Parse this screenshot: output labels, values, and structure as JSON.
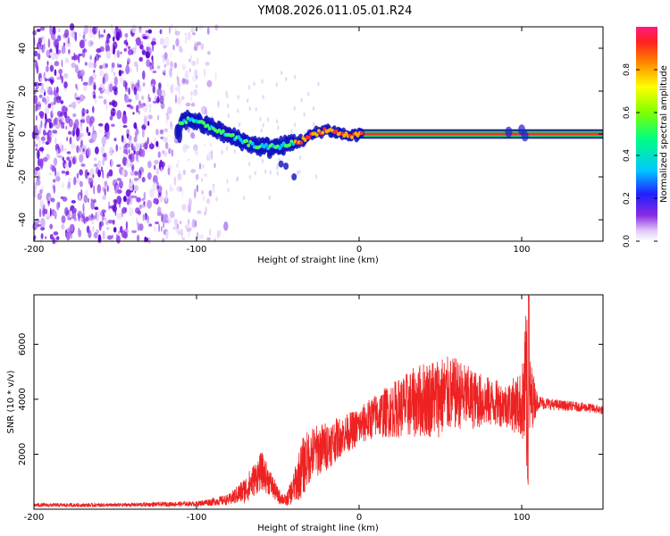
{
  "title": "YM08.2026.011.05.01.R24",
  "chart_data": [
    {
      "type": "heatmap",
      "name": "spectrogram",
      "xlabel": "Height of straight line (km)",
      "ylabel": "Frequency (Hz)",
      "xlim": [
        -200,
        150
      ],
      "ylim": [
        -50,
        50
      ],
      "xticks": [
        -200,
        -100,
        0,
        100
      ],
      "yticks": [
        -40,
        -20,
        0,
        20,
        40
      ],
      "noise_region_x": [
        -200,
        -85
      ],
      "ridge": {
        "x": [
          -110,
          -105,
          -100,
          -95,
          -90,
          -85,
          -80,
          -75,
          -70,
          -65,
          -60,
          -55,
          -50,
          -45,
          -40,
          -35,
          -30,
          -25,
          -20,
          -15,
          -10,
          -5,
          0,
          100,
          150
        ],
        "y": [
          5,
          7,
          6,
          4,
          3,
          1,
          -1,
          -2,
          -4,
          -5,
          -6,
          -6,
          -6,
          -5,
          -4,
          -3,
          -1,
          1,
          2,
          1,
          0,
          -1,
          0,
          0,
          0
        ]
      },
      "colorbar": {
        "label": "Normalized spectral amplitude",
        "range": [
          0,
          1
        ],
        "ticks": [
          "0.0",
          "0.2",
          "0.4",
          "0.6",
          "0.8"
        ],
        "tick_values": [
          0,
          0.2,
          0.4,
          0.6,
          0.8
        ]
      }
    },
    {
      "type": "line",
      "name": "snr",
      "xlabel": "Height of straight line (km)",
      "ylabel": "SNR (10 * v/v)",
      "xlim": [
        -200,
        150
      ],
      "ylim": [
        0,
        7800
      ],
      "xticks": [
        -200,
        -100,
        0,
        100
      ],
      "yticks": [
        2000,
        4000,
        6000
      ],
      "color": "#ee2222",
      "envelope": {
        "x": [
          -200,
          -150,
          -100,
          -80,
          -70,
          -60,
          -55,
          -50,
          -45,
          -40,
          -35,
          -30,
          -20,
          -10,
          0,
          10,
          20,
          30,
          40,
          50,
          60,
          70,
          80,
          90,
          100,
          103,
          104,
          105,
          110,
          120,
          130,
          140,
          150
        ],
        "mean": [
          150,
          150,
          200,
          350,
          700,
          1400,
          1000,
          500,
          300,
          800,
          1500,
          2000,
          2300,
          2700,
          3000,
          3400,
          3600,
          3800,
          4000,
          4100,
          4200,
          4000,
          3900,
          3800,
          3800,
          4200,
          2500,
          4100,
          3900,
          3800,
          3750,
          3700,
          3600
        ],
        "amp": [
          70,
          70,
          90,
          200,
          500,
          700,
          500,
          300,
          200,
          600,
          1100,
          1000,
          900,
          700,
          700,
          800,
          1000,
          1200,
          1400,
          1500,
          1300,
          1100,
          900,
          800,
          1200,
          3500,
          2000,
          1500,
          250,
          200,
          180,
          170,
          170
        ]
      }
    }
  ]
}
